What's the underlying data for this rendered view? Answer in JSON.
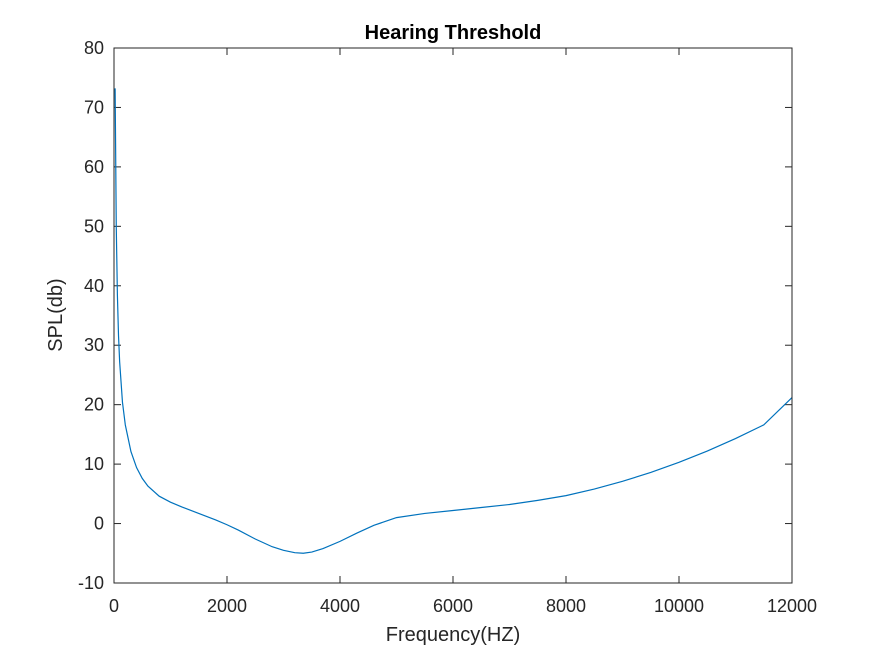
{
  "chart_data": {
    "type": "line",
    "title": "Hearing Threshold",
    "xlabel": "Frequency(HZ)",
    "ylabel": "SPL(db)",
    "xlim": [
      0,
      12000
    ],
    "ylim": [
      -10,
      80
    ],
    "xticks": [
      0,
      2000,
      4000,
      6000,
      8000,
      10000,
      12000
    ],
    "xtick_labels": [
      "0",
      "2000",
      "4000",
      "6000",
      "8000",
      "10000",
      "12000"
    ],
    "yticks": [
      -10,
      0,
      10,
      20,
      30,
      40,
      50,
      60,
      70,
      80
    ],
    "ytick_labels": [
      "-10",
      "0",
      "10",
      "20",
      "30",
      "40",
      "50",
      "60",
      "70",
      "80"
    ],
    "grid": false,
    "line_color": "#0072BD",
    "axis_color": "#262626",
    "series": [
      {
        "x": [
          20,
          40,
          60,
          80,
          100,
          150,
          200,
          300,
          400,
          500,
          600,
          800,
          1000,
          1200,
          1500,
          1800,
          2000,
          2200,
          2500,
          2800,
          3000,
          3200,
          3350,
          3500,
          3700,
          4000,
          4300,
          4600,
          5000,
          5500,
          6000,
          6500,
          7000,
          7500,
          8000,
          8500,
          9000,
          9500,
          10000,
          10500,
          11000,
          11500,
          12000
        ],
        "y": [
          73.2,
          50.0,
          38.5,
          31.6,
          27.2,
          20.4,
          16.6,
          12.1,
          9.4,
          7.6,
          6.3,
          4.6,
          3.6,
          2.8,
          1.7,
          0.6,
          -0.2,
          -1.1,
          -2.6,
          -3.9,
          -4.5,
          -4.9,
          -5.0,
          -4.8,
          -4.2,
          -3.0,
          -1.6,
          -0.3,
          1.0,
          1.7,
          2.2,
          2.7,
          3.2,
          3.9,
          4.7,
          5.8,
          7.1,
          8.6,
          10.3,
          12.2,
          14.3,
          16.6,
          21.2
        ]
      }
    ]
  }
}
